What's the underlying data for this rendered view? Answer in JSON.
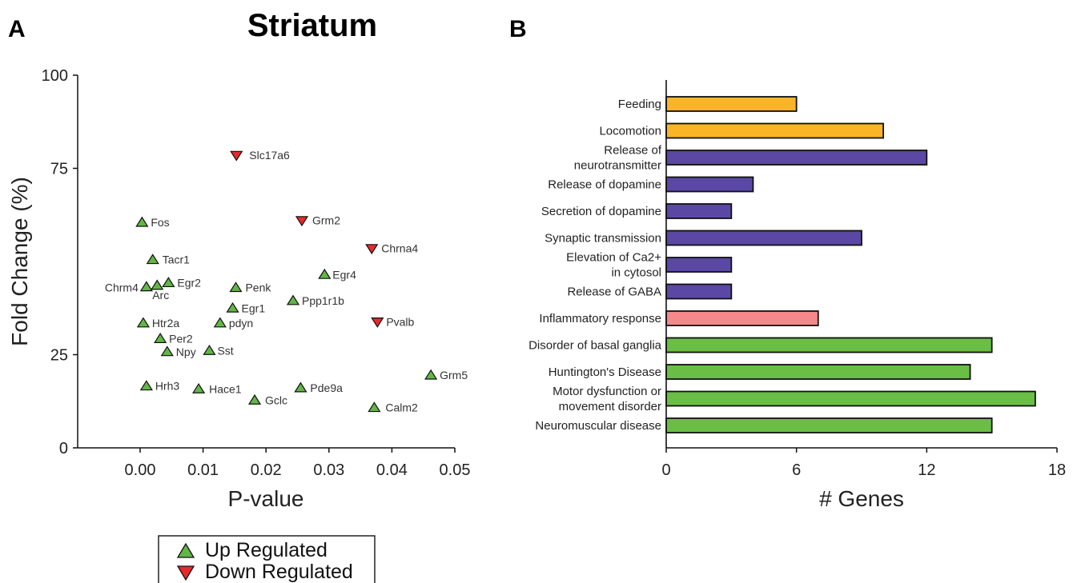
{
  "panels": {
    "a_letter": "A",
    "b_letter": "B"
  },
  "colors": {
    "up": "#62b646",
    "down": "#e8292c",
    "behavior": "#f9b428",
    "neuro": "#5a48a4",
    "inflammatory": "#f4888a",
    "disease": "#6abe45"
  },
  "legend": {
    "up_label": "Up Regulated",
    "down_label": "Down Regulated"
  },
  "chart_data": [
    {
      "type": "scatter",
      "title": "Striatum",
      "xlabel": "P-value",
      "ylabel": "Fold Change (%)",
      "xlim": [
        -0.01,
        0.05
      ],
      "ylim": [
        0,
        100
      ],
      "xticks": [
        "0.00",
        "0.01",
        "0.02",
        "0.03",
        "0.04",
        "0.05"
      ],
      "yticks": [
        "0",
        "25",
        "75",
        "100"
      ],
      "points": [
        {
          "gene": "Slc17a6",
          "x": 0.0153,
          "y": 78.5,
          "dir": "down"
        },
        {
          "gene": "Fos",
          "x": 0.0003,
          "y": 60.5,
          "dir": "up"
        },
        {
          "gene": "Grm2",
          "x": 0.0257,
          "y": 61.0,
          "dir": "down"
        },
        {
          "gene": "Chrna4",
          "x": 0.0368,
          "y": 53.5,
          "dir": "down"
        },
        {
          "gene": "Tacr1",
          "x": 0.002,
          "y": 50.5,
          "dir": "up"
        },
        {
          "gene": "Egr4",
          "x": 0.0293,
          "y": 46.5,
          "dir": "up"
        },
        {
          "gene": "Chrm4",
          "x": 0.001,
          "y": 43.2,
          "dir": "up"
        },
        {
          "gene": "Arc",
          "x": 0.0027,
          "y": 43.6,
          "dir": "up"
        },
        {
          "gene": "Egr2",
          "x": 0.0045,
          "y": 44.3,
          "dir": "up"
        },
        {
          "gene": "Penk",
          "x": 0.0152,
          "y": 43.0,
          "dir": "up"
        },
        {
          "gene": "Ppp1r1b",
          "x": 0.0243,
          "y": 39.5,
          "dir": "up"
        },
        {
          "gene": "Egr1",
          "x": 0.0147,
          "y": 37.5,
          "dir": "up"
        },
        {
          "gene": "Htr2a",
          "x": 0.0005,
          "y": 33.5,
          "dir": "up"
        },
        {
          "gene": "pdyn",
          "x": 0.0127,
          "y": 33.5,
          "dir": "up"
        },
        {
          "gene": "Pvalb",
          "x": 0.0377,
          "y": 33.8,
          "dir": "down"
        },
        {
          "gene": "Per2",
          "x": 0.0032,
          "y": 29.3,
          "dir": "up"
        },
        {
          "gene": "Npy",
          "x": 0.0043,
          "y": 25.8,
          "dir": "up"
        },
        {
          "gene": "Sst",
          "x": 0.011,
          "y": 26.1,
          "dir": "up"
        },
        {
          "gene": "Grm5",
          "x": 0.0462,
          "y": 19.5,
          "dir": "up"
        },
        {
          "gene": "Hrh3",
          "x": 0.001,
          "y": 16.6,
          "dir": "up"
        },
        {
          "gene": "Hace1",
          "x": 0.0093,
          "y": 15.8,
          "dir": "up"
        },
        {
          "gene": "Pde9a",
          "x": 0.0255,
          "y": 16.1,
          "dir": "up"
        },
        {
          "gene": "Gclc",
          "x": 0.0182,
          "y": 12.8,
          "dir": "up"
        },
        {
          "gene": "Calm2",
          "x": 0.0372,
          "y": 10.8,
          "dir": "up"
        }
      ]
    },
    {
      "type": "bar",
      "orientation": "horizontal",
      "xlabel": "# Genes",
      "xlim": [
        0,
        18
      ],
      "xticks": [
        "0",
        "6",
        "12",
        "18"
      ],
      "categories": [
        {
          "lines": [
            "Feeding"
          ],
          "value": 6,
          "group": "behavior"
        },
        {
          "lines": [
            "Locomotion"
          ],
          "value": 10,
          "group": "behavior"
        },
        {
          "lines": [
            "Release of",
            "neurotransmitter"
          ],
          "value": 12,
          "group": "neuro"
        },
        {
          "lines": [
            "Release of dopamine"
          ],
          "value": 4,
          "group": "neuro"
        },
        {
          "lines": [
            "Secretion of dopamine"
          ],
          "value": 3,
          "group": "neuro"
        },
        {
          "lines": [
            "Synaptic transmission"
          ],
          "value": 9,
          "group": "neuro"
        },
        {
          "lines": [
            "Elevation of Ca2+",
            "in cytosol"
          ],
          "value": 3,
          "group": "neuro"
        },
        {
          "lines": [
            "Release of GABA"
          ],
          "value": 3,
          "group": "neuro"
        },
        {
          "lines": [
            "Inflammatory response"
          ],
          "value": 7,
          "group": "inflammatory"
        },
        {
          "lines": [
            "Disorder of basal ganglia"
          ],
          "value": 15,
          "group": "disease"
        },
        {
          "lines": [
            "Huntington's Disease"
          ],
          "value": 14,
          "group": "disease"
        },
        {
          "lines": [
            "Motor dysfunction or",
            "movement disorder"
          ],
          "value": 17,
          "group": "disease"
        },
        {
          "lines": [
            "Neuromuscular disease"
          ],
          "value": 15,
          "group": "disease"
        }
      ]
    }
  ]
}
